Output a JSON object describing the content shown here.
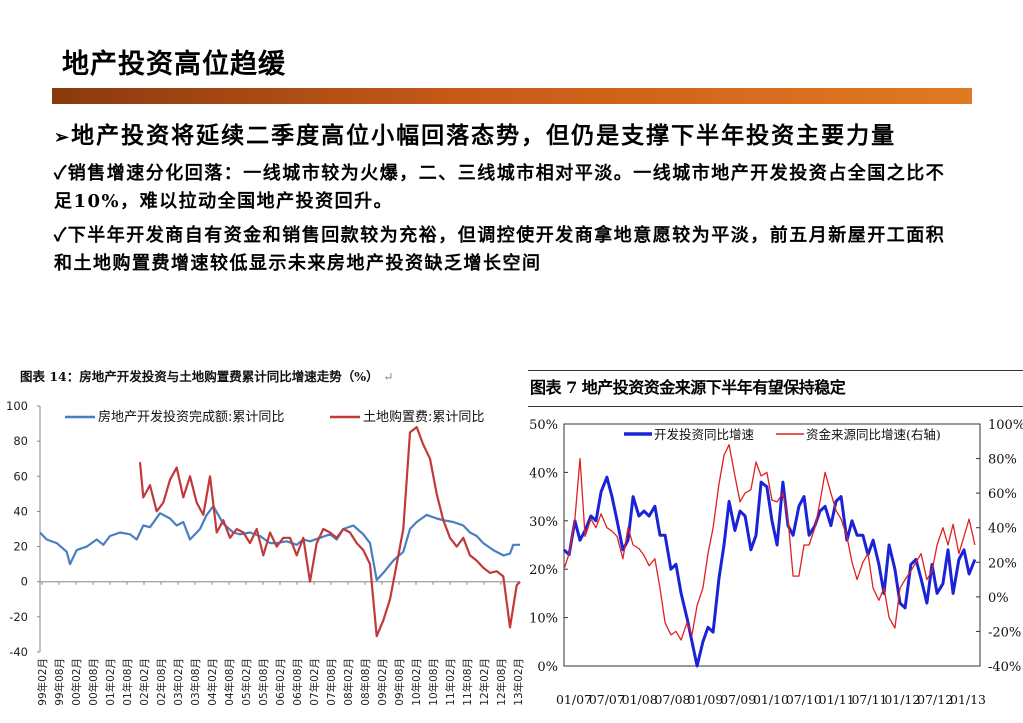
{
  "slide": {
    "title": "地产投资高位趋缓",
    "main_bullet_arrow": "➢",
    "main_bullet": "地产投资将延续二季度高位小幅回落态势，但仍是支撑下半年投资主要力量",
    "check": "✓",
    "sub_bullet_1": "销售增速分化回落：一线城市较为火爆，二、三线城市相对平淡。一线城市地产开发投资占全国之比不足10%，难以拉动全国地产投资回升。",
    "sub_bullet_2": "下半年开发商自有资金和销售回款较为充裕，但调控使开发商拿地意愿较为平淡，前五月新屋开工面积和土地购置费增速较低显示未来房地产投资缺乏增长空间"
  },
  "chart_data": [
    {
      "type": "line",
      "title": "图表 14：房地产开发投资与土地购置费累计同比增速走势（%）",
      "title_mark": "↵",
      "ylim": [
        -40,
        100
      ],
      "yticks": [
        "100",
        "80",
        "60",
        "40",
        "20",
        "0",
        "-20",
        "-40"
      ],
      "xticks": [
        "99年02月",
        "99年08月",
        "00年02月",
        "00年08月",
        "01年02月",
        "01年08月",
        "02年02月",
        "02年08月",
        "03年02月",
        "03年08月",
        "04年02月",
        "04年08月",
        "05年02月",
        "05年08月",
        "06年02月",
        "06年08月",
        "07年02月",
        "07年08月",
        "08年02月",
        "08年08月",
        "09年02月",
        "09年08月",
        "10年02月",
        "10年08月",
        "11年02月",
        "11年08月",
        "12年02月",
        "12年08月",
        "13年02月"
      ],
      "x_range": [
        1999.0,
        2013.4
      ],
      "legend": "top",
      "series": [
        {
          "name": "房地产开发投资完成额:累计同比",
          "color": "#4a7ec2",
          "x": [
            1999.0,
            1999.2,
            1999.5,
            1999.8,
            1999.9,
            2000.1,
            2000.4,
            2000.7,
            2000.9,
            2001.1,
            2001.4,
            2001.7,
            2001.9,
            2002.1,
            2002.3,
            2002.6,
            2002.9,
            2003.1,
            2003.3,
            2003.5,
            2003.8,
            2004.0,
            2004.2,
            2004.5,
            2004.8,
            2005.0,
            2005.3,
            2005.6,
            2005.9,
            2006.1,
            2006.4,
            2006.7,
            2006.9,
            2007.1,
            2007.4,
            2007.7,
            2007.9,
            2008.1,
            2008.4,
            2008.7,
            2008.9,
            2009.1,
            2009.3,
            2009.6,
            2009.9,
            2010.1,
            2010.3,
            2010.6,
            2010.9,
            2011.1,
            2011.4,
            2011.7,
            2011.9,
            2012.1,
            2012.3,
            2012.6,
            2012.9,
            2013.1,
            2013.2,
            2013.4
          ],
          "y": [
            28,
            24,
            22,
            17,
            10,
            18,
            20,
            24,
            21,
            26,
            28,
            27,
            24,
            32,
            31,
            39,
            36,
            32,
            34,
            24,
            30,
            38,
            43,
            33,
            28,
            27,
            28,
            26,
            22,
            22,
            23,
            21,
            24,
            23,
            25,
            27,
            24,
            30,
            32,
            27,
            22,
            1,
            5,
            12,
            17,
            30,
            34,
            38,
            36,
            35,
            34,
            32,
            28,
            26,
            22,
            18,
            15,
            16,
            21,
            21
          ]
        },
        {
          "name": "土地购置费:累计同比",
          "color": "#c0393b",
          "x": [
            2002.0,
            2002.1,
            2002.3,
            2002.5,
            2002.7,
            2002.9,
            2003.1,
            2003.3,
            2003.5,
            2003.7,
            2003.9,
            2004.1,
            2004.3,
            2004.5,
            2004.7,
            2004.9,
            2005.1,
            2005.3,
            2005.5,
            2005.7,
            2005.9,
            2006.1,
            2006.3,
            2006.5,
            2006.7,
            2006.9,
            2007.1,
            2007.3,
            2007.5,
            2007.7,
            2007.9,
            2008.1,
            2008.3,
            2008.5,
            2008.7,
            2008.9,
            2009.1,
            2009.3,
            2009.5,
            2009.7,
            2009.9,
            2010.1,
            2010.3,
            2010.5,
            2010.7,
            2010.9,
            2011.1,
            2011.3,
            2011.5,
            2011.7,
            2011.9,
            2012.1,
            2012.3,
            2012.5,
            2012.7,
            2012.9,
            2013.1,
            2013.3,
            2013.4
          ],
          "y": [
            68,
            48,
            55,
            40,
            45,
            58,
            65,
            48,
            60,
            45,
            38,
            60,
            28,
            35,
            25,
            30,
            28,
            22,
            30,
            15,
            28,
            20,
            25,
            25,
            15,
            25,
            0,
            22,
            30,
            28,
            25,
            30,
            28,
            22,
            18,
            10,
            -31,
            -22,
            -10,
            10,
            30,
            85,
            88,
            78,
            70,
            50,
            35,
            25,
            20,
            25,
            15,
            12,
            8,
            5,
            6,
            3,
            -26,
            -2,
            0
          ]
        }
      ]
    },
    {
      "type": "line",
      "title": "图表 7 地产投资资金来源下半年有望保持稳定",
      "ylim": [
        0,
        50
      ],
      "y2lim": [
        -40,
        100
      ],
      "yticks": [
        "50%",
        "40%",
        "30%",
        "20%",
        "10%",
        "0%"
      ],
      "y2ticks": [
        "100%",
        "80%",
        "60%",
        "40%",
        "20%",
        "0%",
        "-20%",
        "-40%"
      ],
      "xticks": [
        "01/07",
        "07/07",
        "01/08",
        "07/08",
        "01/09",
        "07/09",
        "01/10",
        "07/10",
        "01/11",
        "07/11",
        "01/12",
        "07/12",
        "01/13"
      ],
      "x_range": [
        2007.0,
        2013.5
      ],
      "legend": "top",
      "series": [
        {
          "name": "开发投资同比增速",
          "axis": "left",
          "color": "#1a23d8",
          "x": [
            2007.0,
            2007.08,
            2007.17,
            2007.25,
            2007.33,
            2007.42,
            2007.5,
            2007.58,
            2007.67,
            2007.75,
            2007.83,
            2007.92,
            2008.0,
            2008.08,
            2008.17,
            2008.25,
            2008.33,
            2008.42,
            2008.5,
            2008.58,
            2008.67,
            2008.75,
            2008.83,
            2008.92,
            2009.0,
            2009.08,
            2009.17,
            2009.25,
            2009.33,
            2009.42,
            2009.5,
            2009.58,
            2009.67,
            2009.75,
            2009.83,
            2009.92,
            2010.0,
            2010.08,
            2010.17,
            2010.25,
            2010.33,
            2010.42,
            2010.5,
            2010.58,
            2010.67,
            2010.75,
            2010.83,
            2010.92,
            2011.0,
            2011.08,
            2011.17,
            2011.25,
            2011.33,
            2011.42,
            2011.5,
            2011.58,
            2011.67,
            2011.75,
            2011.83,
            2011.92,
            2012.0,
            2012.08,
            2012.17,
            2012.25,
            2012.33,
            2012.42,
            2012.5,
            2012.58,
            2012.67,
            2012.75,
            2012.83,
            2012.92,
            2013.0,
            2013.08,
            2013.17,
            2013.25,
            2013.33,
            2013.42
          ],
          "y": [
            24,
            23,
            30,
            26,
            28,
            31,
            30,
            36,
            39,
            35,
            30,
            24,
            26,
            35,
            31,
            32,
            31,
            33,
            27,
            27,
            20,
            21,
            15,
            10,
            5,
            0,
            5,
            8,
            7,
            18,
            25,
            34,
            28,
            32,
            31,
            24,
            27,
            38,
            37,
            30,
            25,
            38,
            29,
            27,
            33,
            35,
            27,
            29,
            32,
            33,
            29,
            34,
            35,
            26,
            30,
            27,
            27,
            23,
            26,
            21,
            15,
            25,
            20,
            13,
            12,
            21,
            22,
            18,
            13,
            21,
            15,
            17,
            24,
            15,
            22,
            24,
            19,
            22
          ]
        },
        {
          "name": "资金来源同比增速(右轴)",
          "axis": "right",
          "color": "#e02020",
          "x": [
            2007.0,
            2007.08,
            2007.17,
            2007.25,
            2007.33,
            2007.42,
            2007.5,
            2007.58,
            2007.67,
            2007.75,
            2007.83,
            2007.92,
            2008.0,
            2008.08,
            2008.17,
            2008.25,
            2008.33,
            2008.42,
            2008.5,
            2008.58,
            2008.67,
            2008.75,
            2008.83,
            2008.92,
            2009.0,
            2009.08,
            2009.17,
            2009.25,
            2009.33,
            2009.42,
            2009.5,
            2009.58,
            2009.67,
            2009.75,
            2009.83,
            2009.92,
            2010.0,
            2010.08,
            2010.17,
            2010.25,
            2010.33,
            2010.42,
            2010.5,
            2010.58,
            2010.67,
            2010.75,
            2010.83,
            2010.92,
            2011.0,
            2011.08,
            2011.17,
            2011.25,
            2011.33,
            2011.42,
            2011.5,
            2011.58,
            2011.67,
            2011.75,
            2011.83,
            2011.92,
            2012.0,
            2012.08,
            2012.17,
            2012.25,
            2012.33,
            2012.42,
            2012.5,
            2012.58,
            2012.67,
            2012.75,
            2012.83,
            2012.92,
            2013.0,
            2013.08,
            2013.17,
            2013.25,
            2013.33,
            2013.42
          ],
          "y": [
            16,
            25,
            45,
            80,
            35,
            45,
            40,
            48,
            40,
            38,
            35,
            22,
            40,
            30,
            28,
            24,
            18,
            22,
            5,
            -15,
            -22,
            -20,
            -25,
            -15,
            -22,
            -5,
            5,
            25,
            40,
            65,
            82,
            88,
            70,
            55,
            60,
            62,
            78,
            70,
            72,
            56,
            55,
            60,
            45,
            12,
            12,
            30,
            30,
            40,
            55,
            72,
            60,
            50,
            45,
            35,
            20,
            10,
            20,
            25,
            5,
            -2,
            5,
            -12,
            -18,
            5,
            10,
            15,
            20,
            25,
            10,
            15,
            30,
            40,
            30,
            42,
            25,
            35,
            45,
            30
          ]
        }
      ]
    }
  ]
}
